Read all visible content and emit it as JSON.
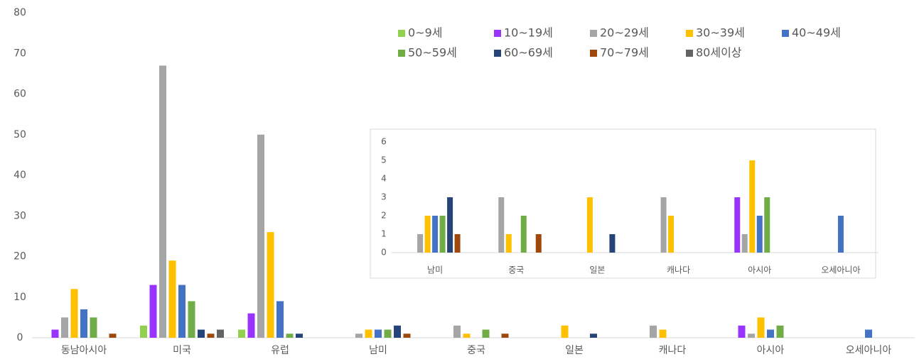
{
  "chart_data": [
    {
      "type": "bar",
      "categories": [
        "동남아시아",
        "미국",
        "유럽",
        "남미",
        "중국",
        "일본",
        "캐나다",
        "아시아",
        "오세아니아"
      ],
      "series": [
        {
          "name": "0~9세",
          "color": "#92d050",
          "values": [
            0,
            3,
            2,
            0,
            0,
            0,
            0,
            0,
            0
          ]
        },
        {
          "name": "10~19세",
          "color": "#9933ff",
          "values": [
            2,
            13,
            6,
            0,
            0,
            0,
            0,
            3,
            0
          ]
        },
        {
          "name": "20~29세",
          "color": "#a5a5a5",
          "values": [
            5,
            67,
            50,
            1,
            3,
            0,
            3,
            1,
            0
          ]
        },
        {
          "name": "30~39세",
          "color": "#ffc000",
          "values": [
            12,
            19,
            26,
            2,
            1,
            3,
            2,
            5,
            0
          ]
        },
        {
          "name": "40~49세",
          "color": "#4472c4",
          "values": [
            7,
            13,
            9,
            2,
            0,
            0,
            0,
            2,
            2
          ]
        },
        {
          "name": "50~59세",
          "color": "#70ad47",
          "values": [
            5,
            9,
            1,
            2,
            2,
            0,
            0,
            3,
            0
          ]
        },
        {
          "name": "60~69세",
          "color": "#264478",
          "values": [
            0,
            2,
            1,
            3,
            0,
            1,
            0,
            0,
            0
          ]
        },
        {
          "name": "70~79세",
          "color": "#9e480e",
          "values": [
            1,
            1,
            0,
            1,
            1,
            0,
            0,
            0,
            0
          ]
        },
        {
          "name": "80세이상",
          "color": "#636363",
          "values": [
            0,
            2,
            0,
            0,
            0,
            0,
            0,
            0,
            0
          ]
        }
      ],
      "ylim": [
        0,
        80
      ],
      "yticks": [
        0,
        10,
        20,
        30,
        40,
        50,
        60,
        70,
        80
      ]
    },
    {
      "type": "bar",
      "categories": [
        "남미",
        "중국",
        "일본",
        "캐나다",
        "아시아",
        "오세아니아"
      ],
      "series": [
        {
          "color": "#92d050",
          "values": [
            0,
            0,
            0,
            0,
            0,
            0
          ]
        },
        {
          "color": "#9933ff",
          "values": [
            0,
            0,
            0,
            0,
            3,
            0
          ]
        },
        {
          "color": "#a5a5a5",
          "values": [
            1,
            3,
            0,
            3,
            1,
            0
          ]
        },
        {
          "color": "#ffc000",
          "values": [
            2,
            1,
            3,
            2,
            5,
            0
          ]
        },
        {
          "color": "#4472c4",
          "values": [
            2,
            0,
            0,
            0,
            2,
            2
          ]
        },
        {
          "color": "#70ad47",
          "values": [
            2,
            2,
            0,
            0,
            3,
            0
          ]
        },
        {
          "color": "#264478",
          "values": [
            3,
            0,
            1,
            0,
            0,
            0
          ]
        },
        {
          "color": "#9e480e",
          "values": [
            1,
            1,
            0,
            0,
            0,
            0
          ]
        },
        {
          "color": "#636363",
          "values": [
            0,
            0,
            0,
            0,
            0,
            0
          ]
        }
      ],
      "ylim": [
        0,
        6
      ],
      "yticks": [
        0,
        1,
        2,
        3,
        4,
        5,
        6
      ]
    }
  ]
}
